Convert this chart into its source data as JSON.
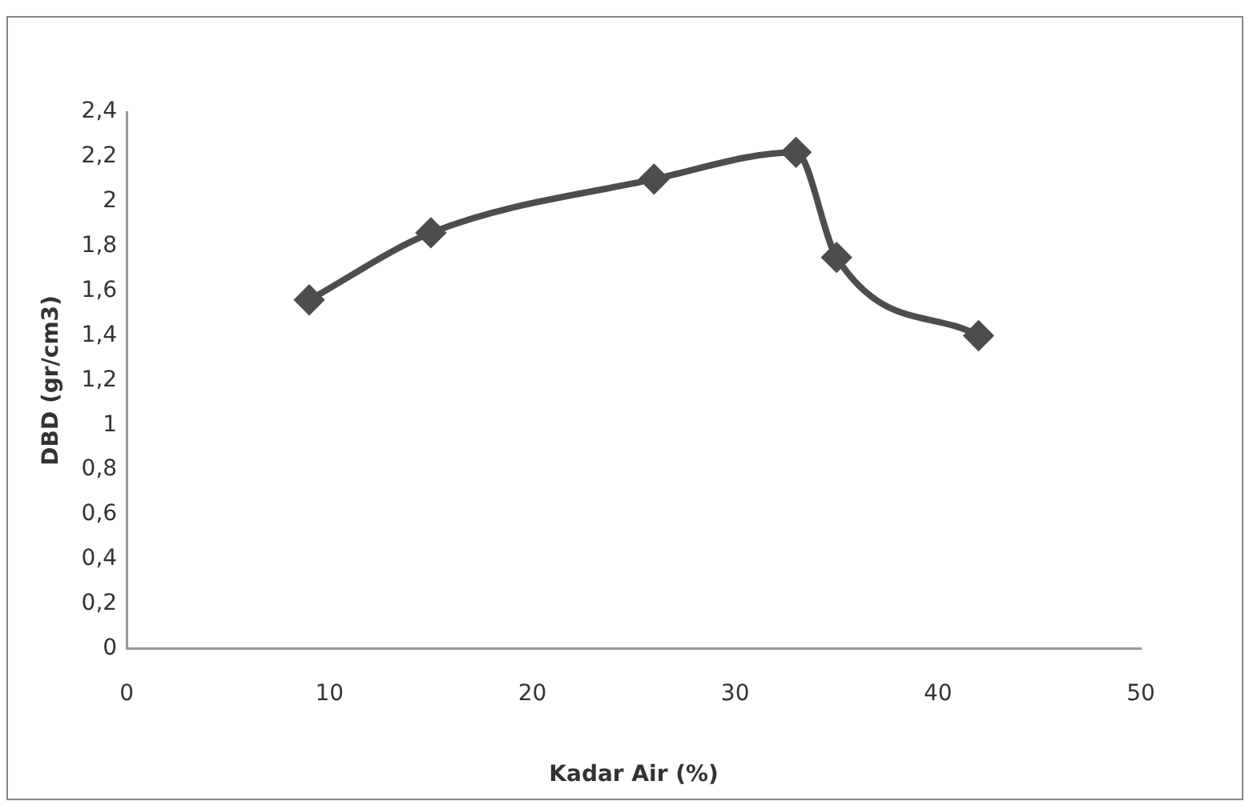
{
  "chart_data": {
    "type": "line",
    "xlabel": "Kadar Air (%)",
    "ylabel": "DBD (gr/cm3)",
    "x": [
      9,
      15,
      26,
      33,
      35,
      42
    ],
    "series": [
      {
        "color": "#4d4d4d",
        "values": [
          1.56,
          1.86,
          2.1,
          2.22,
          1.75,
          1.4
        ]
      }
    ],
    "xlim": [
      0,
      50
    ],
    "xticks": [
      0,
      10,
      20,
      30,
      40,
      50
    ],
    "ylim": [
      0,
      2.4
    ],
    "yticks": [
      0,
      {
        "value": 0.2,
        "label": "0,2"
      },
      {
        "value": 0.4,
        "label": "0,4"
      },
      {
        "value": 0.6,
        "label": "0,6"
      },
      {
        "value": 0.8,
        "label": "0,8"
      },
      1,
      {
        "value": 1.2,
        "label": "1,2"
      },
      {
        "value": 1.4,
        "label": "1,4"
      },
      {
        "value": 1.6,
        "label": "1,6"
      },
      {
        "value": 1.8,
        "label": "1,8"
      },
      2,
      {
        "value": 2.2,
        "label": "2,2"
      },
      {
        "value": 2.4,
        "label": "2,4"
      }
    ],
    "grid": false,
    "legend": false,
    "marker": "diamond",
    "line_style": "solid"
  }
}
